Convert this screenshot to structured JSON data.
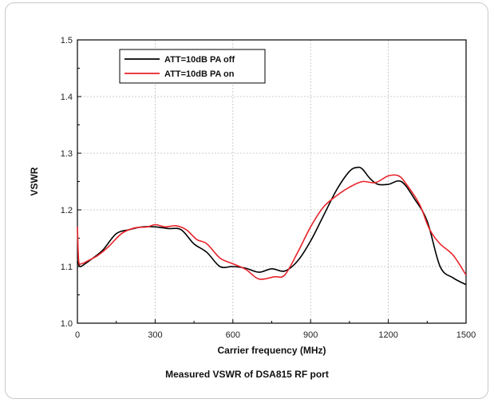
{
  "caption": "Measured VSWR of DSA815 RF port",
  "chart_data": {
    "type": "line",
    "title": "",
    "xlabel": "Carrier frequency (MHz)",
    "ylabel": "VSWR",
    "xlim": [
      0,
      1500
    ],
    "ylim": [
      1.0,
      1.5
    ],
    "xticks": [
      0,
      300,
      600,
      900,
      1200,
      1500
    ],
    "yticks": [
      1.0,
      1.1,
      1.2,
      1.3,
      1.4,
      1.5
    ],
    "xtick_labels": [
      "0",
      "300",
      "600",
      "900",
      "1200",
      "1500"
    ],
    "ytick_labels": [
      "1.0",
      "1.1",
      "1.2",
      "1.3",
      "1.4",
      "1.5"
    ],
    "grid": true,
    "legend_position": "top-left",
    "series": [
      {
        "name": "ATT=10dB PA off",
        "color": "#000000",
        "x": [
          0,
          10,
          30,
          60,
          100,
          150,
          200,
          250,
          300,
          350,
          400,
          450,
          500,
          550,
          600,
          650,
          700,
          750,
          800,
          850,
          900,
          950,
          1000,
          1050,
          1080,
          1100,
          1130,
          1160,
          1200,
          1250,
          1300,
          1350,
          1400,
          1450,
          1500
        ],
        "y": [
          1.11,
          1.1,
          1.105,
          1.115,
          1.13,
          1.158,
          1.165,
          1.17,
          1.17,
          1.167,
          1.165,
          1.14,
          1.125,
          1.1,
          1.1,
          1.097,
          1.09,
          1.096,
          1.092,
          1.11,
          1.145,
          1.19,
          1.235,
          1.268,
          1.275,
          1.272,
          1.255,
          1.245,
          1.245,
          1.25,
          1.22,
          1.18,
          1.1,
          1.08,
          1.068
        ]
      },
      {
        "name": "ATT=10dB PA on",
        "color": "#e8232a",
        "x": [
          0,
          5,
          15,
          40,
          80,
          120,
          170,
          220,
          270,
          300,
          340,
          380,
          420,
          460,
          500,
          550,
          600,
          650,
          700,
          760,
          800,
          850,
          900,
          950,
          1000,
          1050,
          1100,
          1150,
          1200,
          1240,
          1270,
          1320,
          1360,
          1400,
          1450,
          1500
        ],
        "y": [
          1.17,
          1.11,
          1.105,
          1.11,
          1.12,
          1.135,
          1.158,
          1.168,
          1.17,
          1.174,
          1.17,
          1.172,
          1.165,
          1.148,
          1.14,
          1.115,
          1.105,
          1.095,
          1.078,
          1.082,
          1.085,
          1.125,
          1.17,
          1.205,
          1.225,
          1.24,
          1.25,
          1.248,
          1.26,
          1.26,
          1.245,
          1.21,
          1.165,
          1.14,
          1.12,
          1.085
        ]
      }
    ]
  }
}
